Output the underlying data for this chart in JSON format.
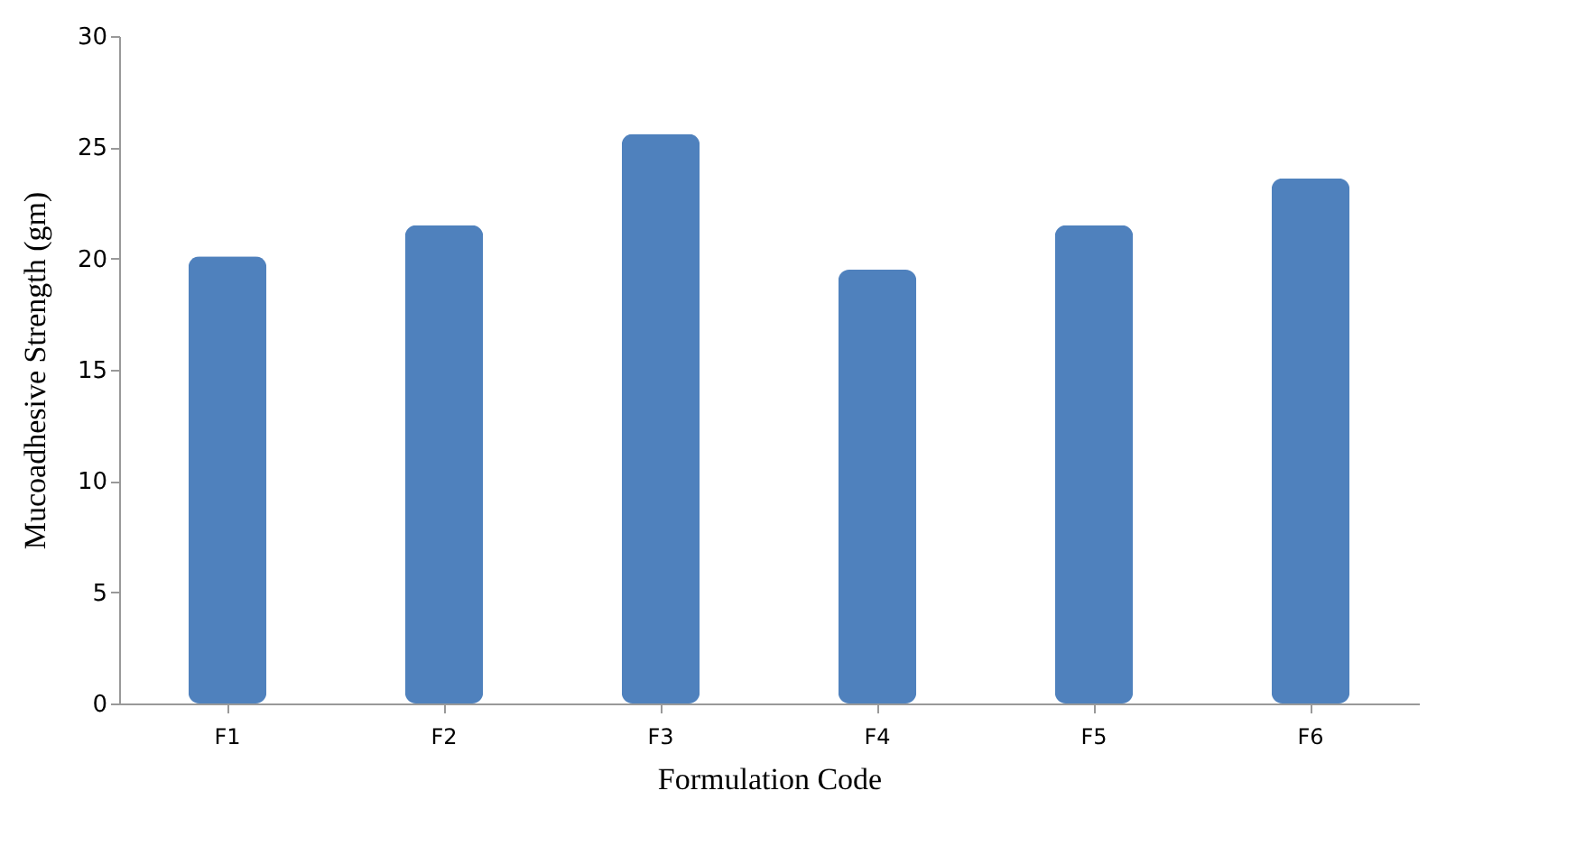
{
  "chart_data": {
    "type": "bar",
    "xlabel": "Formulation Code",
    "ylabel": "Mucoadhesive Strength (gm)",
    "categories": [
      "F1",
      "F2",
      "F3",
      "F4",
      "F5",
      "F6"
    ],
    "values": [
      20.1,
      21.5,
      25.6,
      19.5,
      21.5,
      23.6
    ],
    "color": "#4f81bd",
    "ylim": [
      0,
      30
    ],
    "yticks": [
      0,
      5,
      10,
      15,
      20,
      25,
      30
    ],
    "grid": false
  }
}
